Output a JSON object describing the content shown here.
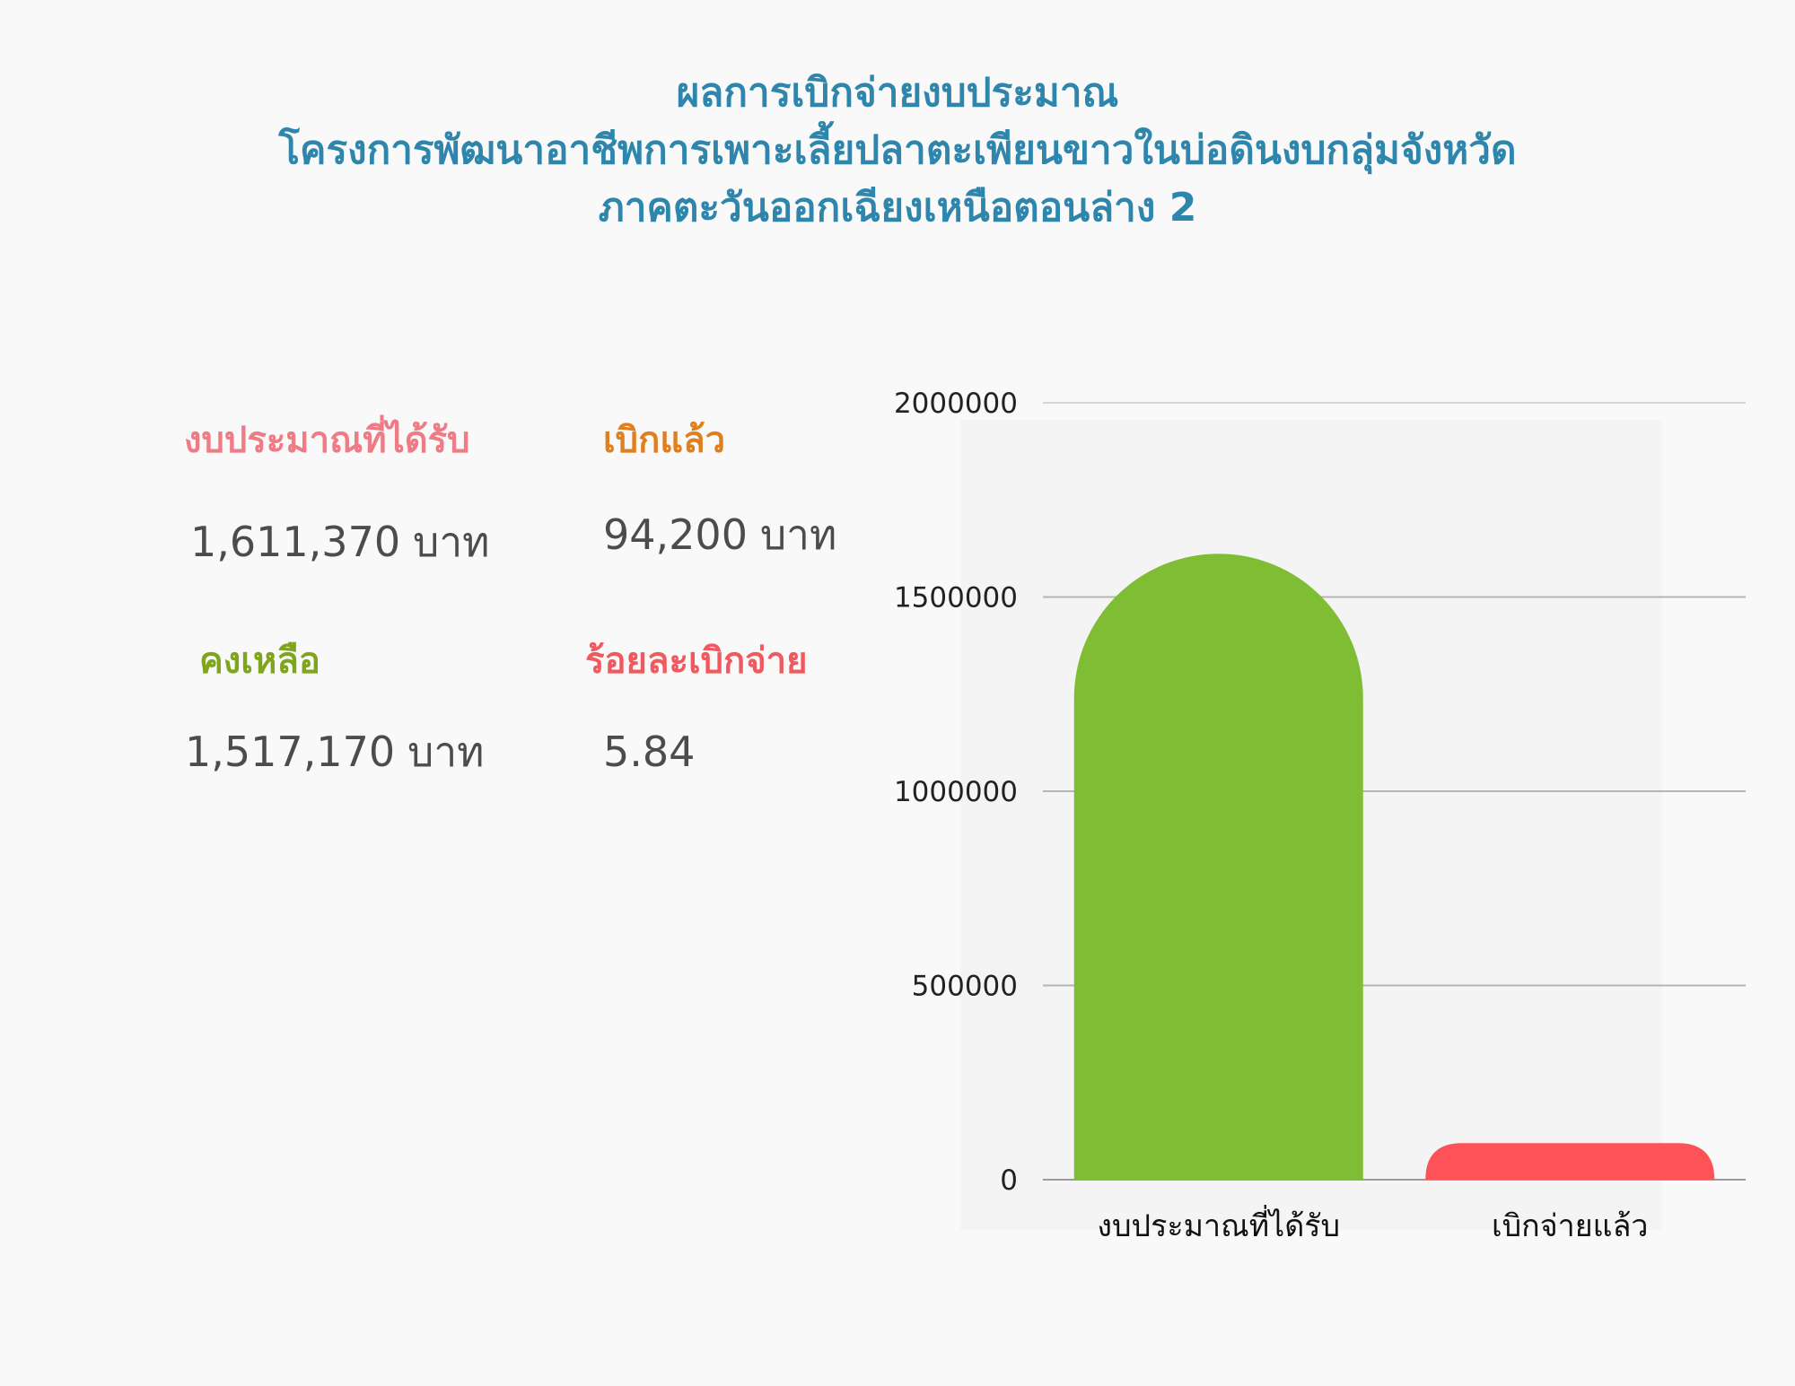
{
  "title": {
    "line1": "ผลการเบิกจ่ายงบประมาณ",
    "line2": "โครงการพัฒนาอาชีพการเพาะเลี้ยปลาตะเพียนขาวในบ่อดินงบกลุ่มจังหวัด",
    "line3": "ภาคตะวันออกเฉียงเหนือตอนล่าง 2"
  },
  "stats": {
    "budget": {
      "label": "งบประมาณที่ได้รับ",
      "value": "1,611,370",
      "unit": "บาท",
      "color": "#ef7b85"
    },
    "disbursed": {
      "label": "เบิกแล้ว",
      "value": "94,200",
      "unit": "บาท",
      "color": "#e07f1f"
    },
    "remaining": {
      "label": "คงเหลือ",
      "value": "1,517,170",
      "unit": "บาท",
      "color": "#7fa51c"
    },
    "percent": {
      "label": "ร้อยละเบิกจ่าย",
      "value": "5.84",
      "color": "#f05a5f"
    }
  },
  "chart_data": {
    "type": "bar",
    "categories": [
      "งบประมาณที่ได้รับ",
      "เบิกจ่ายแล้ว"
    ],
    "values": [
      1611370,
      94200
    ],
    "colors": [
      "#7fbd34",
      "#fd5358"
    ],
    "ylim": [
      0,
      2000000
    ],
    "yticks": [
      0,
      500000,
      1000000,
      1500000,
      2000000
    ],
    "grid": true
  }
}
